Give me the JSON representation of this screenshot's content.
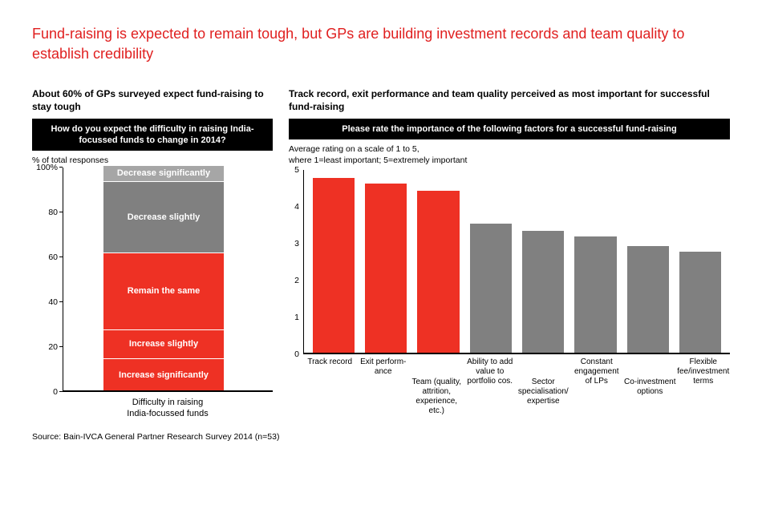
{
  "headline": "Fund-raising is expected to remain tough, but GPs are building investment records and team quality to establish credibility",
  "source": "Source: Bain-IVCA General Partner Research Survey 2014 (n=53)",
  "colors": {
    "red": "#ee3124",
    "gray_dark": "#808080",
    "gray": "#a6a6a6",
    "black": "#000000",
    "white": "#ffffff"
  },
  "left_chart": {
    "type": "stacked-bar",
    "subheading": "About 60% of GPs surveyed expect fund-raising to stay tough",
    "question": "How do you expect the difficulty in raising India-focussed funds to change in 2014?",
    "axis_label": "% of total responses",
    "ylim": [
      0,
      100
    ],
    "ytick_step": 20,
    "yticks": [
      {
        "label": "100%",
        "value": 100
      },
      {
        "label": "80",
        "value": 80
      },
      {
        "label": "60",
        "value": 60
      },
      {
        "label": "40",
        "value": 40
      },
      {
        "label": "20",
        "value": 20
      },
      {
        "label": "0",
        "value": 0
      }
    ],
    "segments": [
      {
        "label": "Decrease significantly",
        "value": 7,
        "color": "#a6a6a6"
      },
      {
        "label": "Decrease slightly",
        "value": 32,
        "color": "#808080"
      },
      {
        "label": "Remain the same",
        "value": 34,
        "color": "#ee3124"
      },
      {
        "label": "Increase slightly",
        "value": 13,
        "color": "#ee3124"
      },
      {
        "label": "Increase significantly",
        "value": 14,
        "color": "#ee3124"
      }
    ],
    "xlabel": "Difficulty in raising\nIndia-focussed funds"
  },
  "right_chart": {
    "type": "bar",
    "subheading": "Track record, exit performance and team quality perceived as most important for successful fund-raising",
    "question": "Please rate the importance of the following factors for a successful fund-raising",
    "axis_label": "Average rating on a scale of 1 to 5,\nwhere 1=least important; 5=extremely important",
    "ylim": [
      0,
      5
    ],
    "ytick_step": 1,
    "yticks": [
      {
        "label": "5",
        "value": 5
      },
      {
        "label": "4",
        "value": 4
      },
      {
        "label": "3",
        "value": 3
      },
      {
        "label": "2",
        "value": 2
      },
      {
        "label": "1",
        "value": 1
      },
      {
        "label": "0",
        "value": 0
      }
    ],
    "bars": [
      {
        "label": "Track record",
        "value": 4.75,
        "color": "#ee3124",
        "label_row": "top"
      },
      {
        "label": "Exit perform-ance",
        "value": 4.6,
        "color": "#ee3124",
        "label_row": "top"
      },
      {
        "label": "Team (quality, attrition, experience, etc.)",
        "value": 4.4,
        "color": "#ee3124",
        "label_row": "bottom"
      },
      {
        "label": "Ability to add value to portfolio cos.",
        "value": 3.5,
        "color": "#808080",
        "label_row": "top"
      },
      {
        "label": "Sector specialisation/ expertise",
        "value": 3.3,
        "color": "#808080",
        "label_row": "bottom"
      },
      {
        "label": "Constant engagement of LPs",
        "value": 3.15,
        "color": "#808080",
        "label_row": "top"
      },
      {
        "label": "Co-investment options",
        "value": 2.9,
        "color": "#808080",
        "label_row": "bottom"
      },
      {
        "label": "Flexible fee/investment terms",
        "value": 2.75,
        "color": "#808080",
        "label_row": "top"
      }
    ]
  }
}
